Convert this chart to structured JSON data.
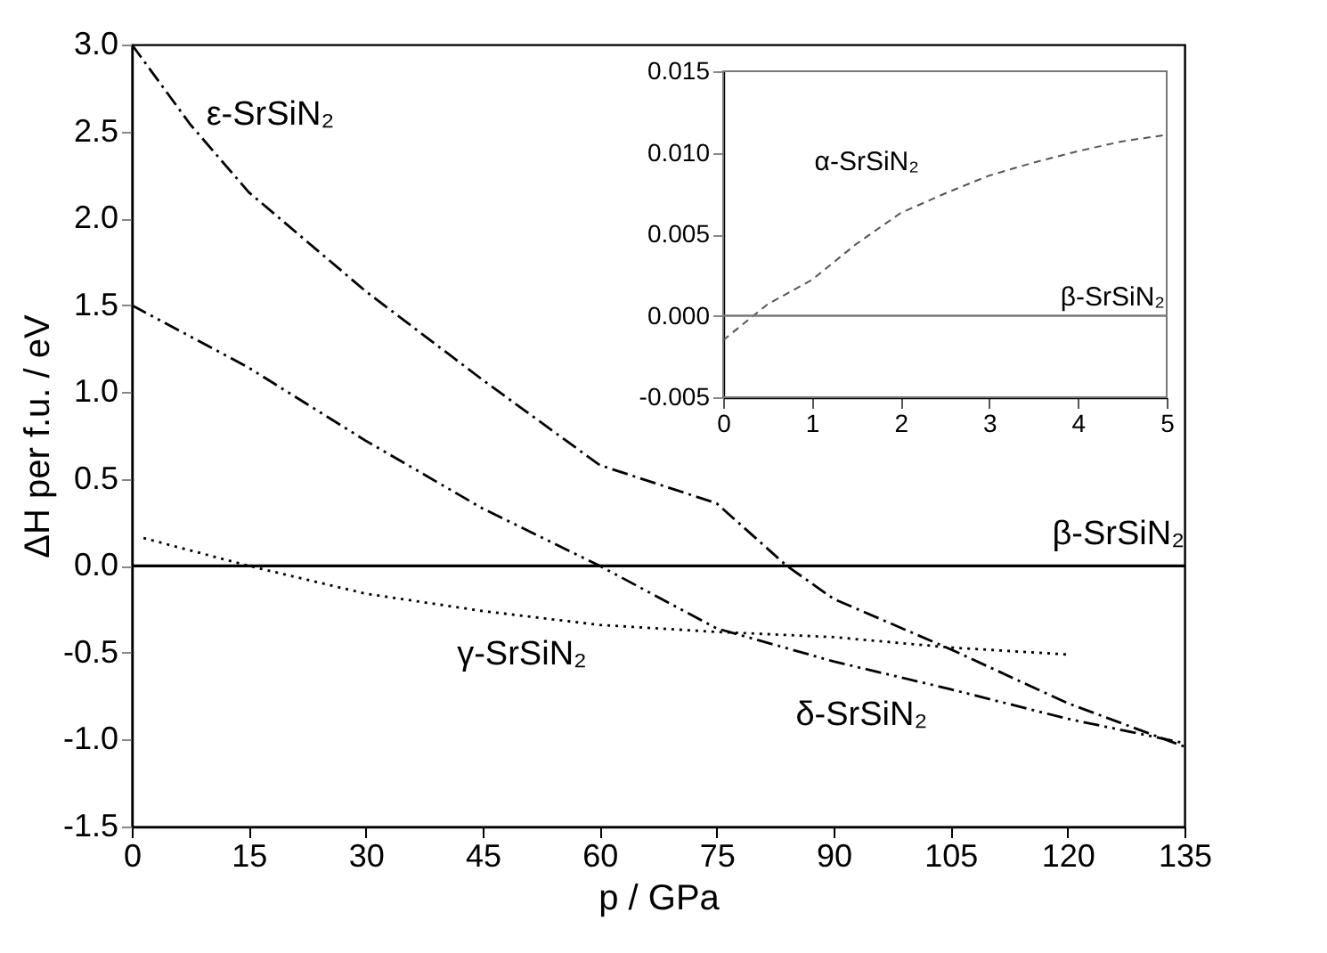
{
  "chart_data": [
    {
      "type": "line",
      "xlabel": "p / GPa",
      "ylabel": "ΔH per f.u. / eV",
      "xlim": [
        0,
        135
      ],
      "ylim": [
        -1.5,
        3.0
      ],
      "xticks": [
        0,
        15,
        30,
        45,
        60,
        75,
        90,
        105,
        120,
        135
      ],
      "yticks": [
        -1.5,
        {
          "value": -1,
          "label": "-1.0"
        },
        -0.5,
        {
          "value": 0,
          "label": "0.0"
        },
        0.5,
        {
          "value": 1,
          "label": "1.0"
        },
        1.5,
        {
          "value": 2,
          "label": "2.0"
        },
        2.5,
        {
          "value": 3,
          "label": "3.0"
        }
      ],
      "grid": false,
      "marker": "none",
      "series": [
        {
          "name": "ε-SrSiN₂",
          "color": "#000000",
          "line_style": "dashdot",
          "x": [
            0,
            7.5,
            15,
            30,
            45,
            60,
            75,
            84,
            90,
            105,
            120,
            135
          ],
          "values": [
            3.0,
            2.54,
            2.15,
            1.58,
            1.07,
            0.58,
            0.36,
            0.0,
            -0.19,
            -0.48,
            -0.79,
            -1.04
          ]
        },
        {
          "name": "δ-SrSiN₂",
          "color": "#000000",
          "line_style": "dashdotdot",
          "x": [
            0,
            15,
            30,
            45,
            60,
            75,
            90,
            105,
            120,
            135
          ],
          "values": [
            1.5,
            1.14,
            0.72,
            0.33,
            0.0,
            -0.36,
            -0.55,
            -0.71,
            -0.88,
            -1.02
          ]
        },
        {
          "name": "γ-SrSiN₂",
          "color": "#000000",
          "line_style": "dotted",
          "x": [
            1.5,
            15,
            30,
            45,
            60,
            75,
            90,
            105,
            120
          ],
          "values": [
            0.16,
            0.0,
            -0.16,
            -0.26,
            -0.34,
            -0.38,
            -0.41,
            -0.47,
            -0.51
          ]
        },
        {
          "name": "β-SrSiN₂",
          "color": "#000000",
          "line_style": "solid",
          "x": [
            0,
            135
          ],
          "values": [
            0,
            0
          ]
        }
      ]
    },
    {
      "type": "line",
      "xlim": [
        0,
        5
      ],
      "ylim": [
        -0.005,
        0.015
      ],
      "xticks": [
        0,
        1,
        2,
        3,
        4,
        5
      ],
      "yticks": [
        -0.005,
        {
          "value": 0,
          "label": "0.000"
        },
        0.005,
        {
          "value": 0.01,
          "label": "0.010"
        },
        0.015
      ],
      "grid": false,
      "marker": "none",
      "series": [
        {
          "name": "α-SrSiN₂",
          "color": "#555555",
          "line_style": "dashed",
          "x": [
            0,
            0.5,
            1,
            1.5,
            2,
            2.5,
            3,
            3.5,
            4,
            4.5,
            5
          ],
          "values": [
            -0.0015,
            0.0007,
            0.0022,
            0.0044,
            0.0063,
            0.0075,
            0.0086,
            0.0094,
            0.0101,
            0.0107,
            0.0111
          ]
        },
        {
          "name": "β-SrSiN₂",
          "color": "#777777",
          "line_style": "solid",
          "x": [
            0,
            5
          ],
          "values": [
            0,
            0
          ]
        }
      ]
    }
  ]
}
